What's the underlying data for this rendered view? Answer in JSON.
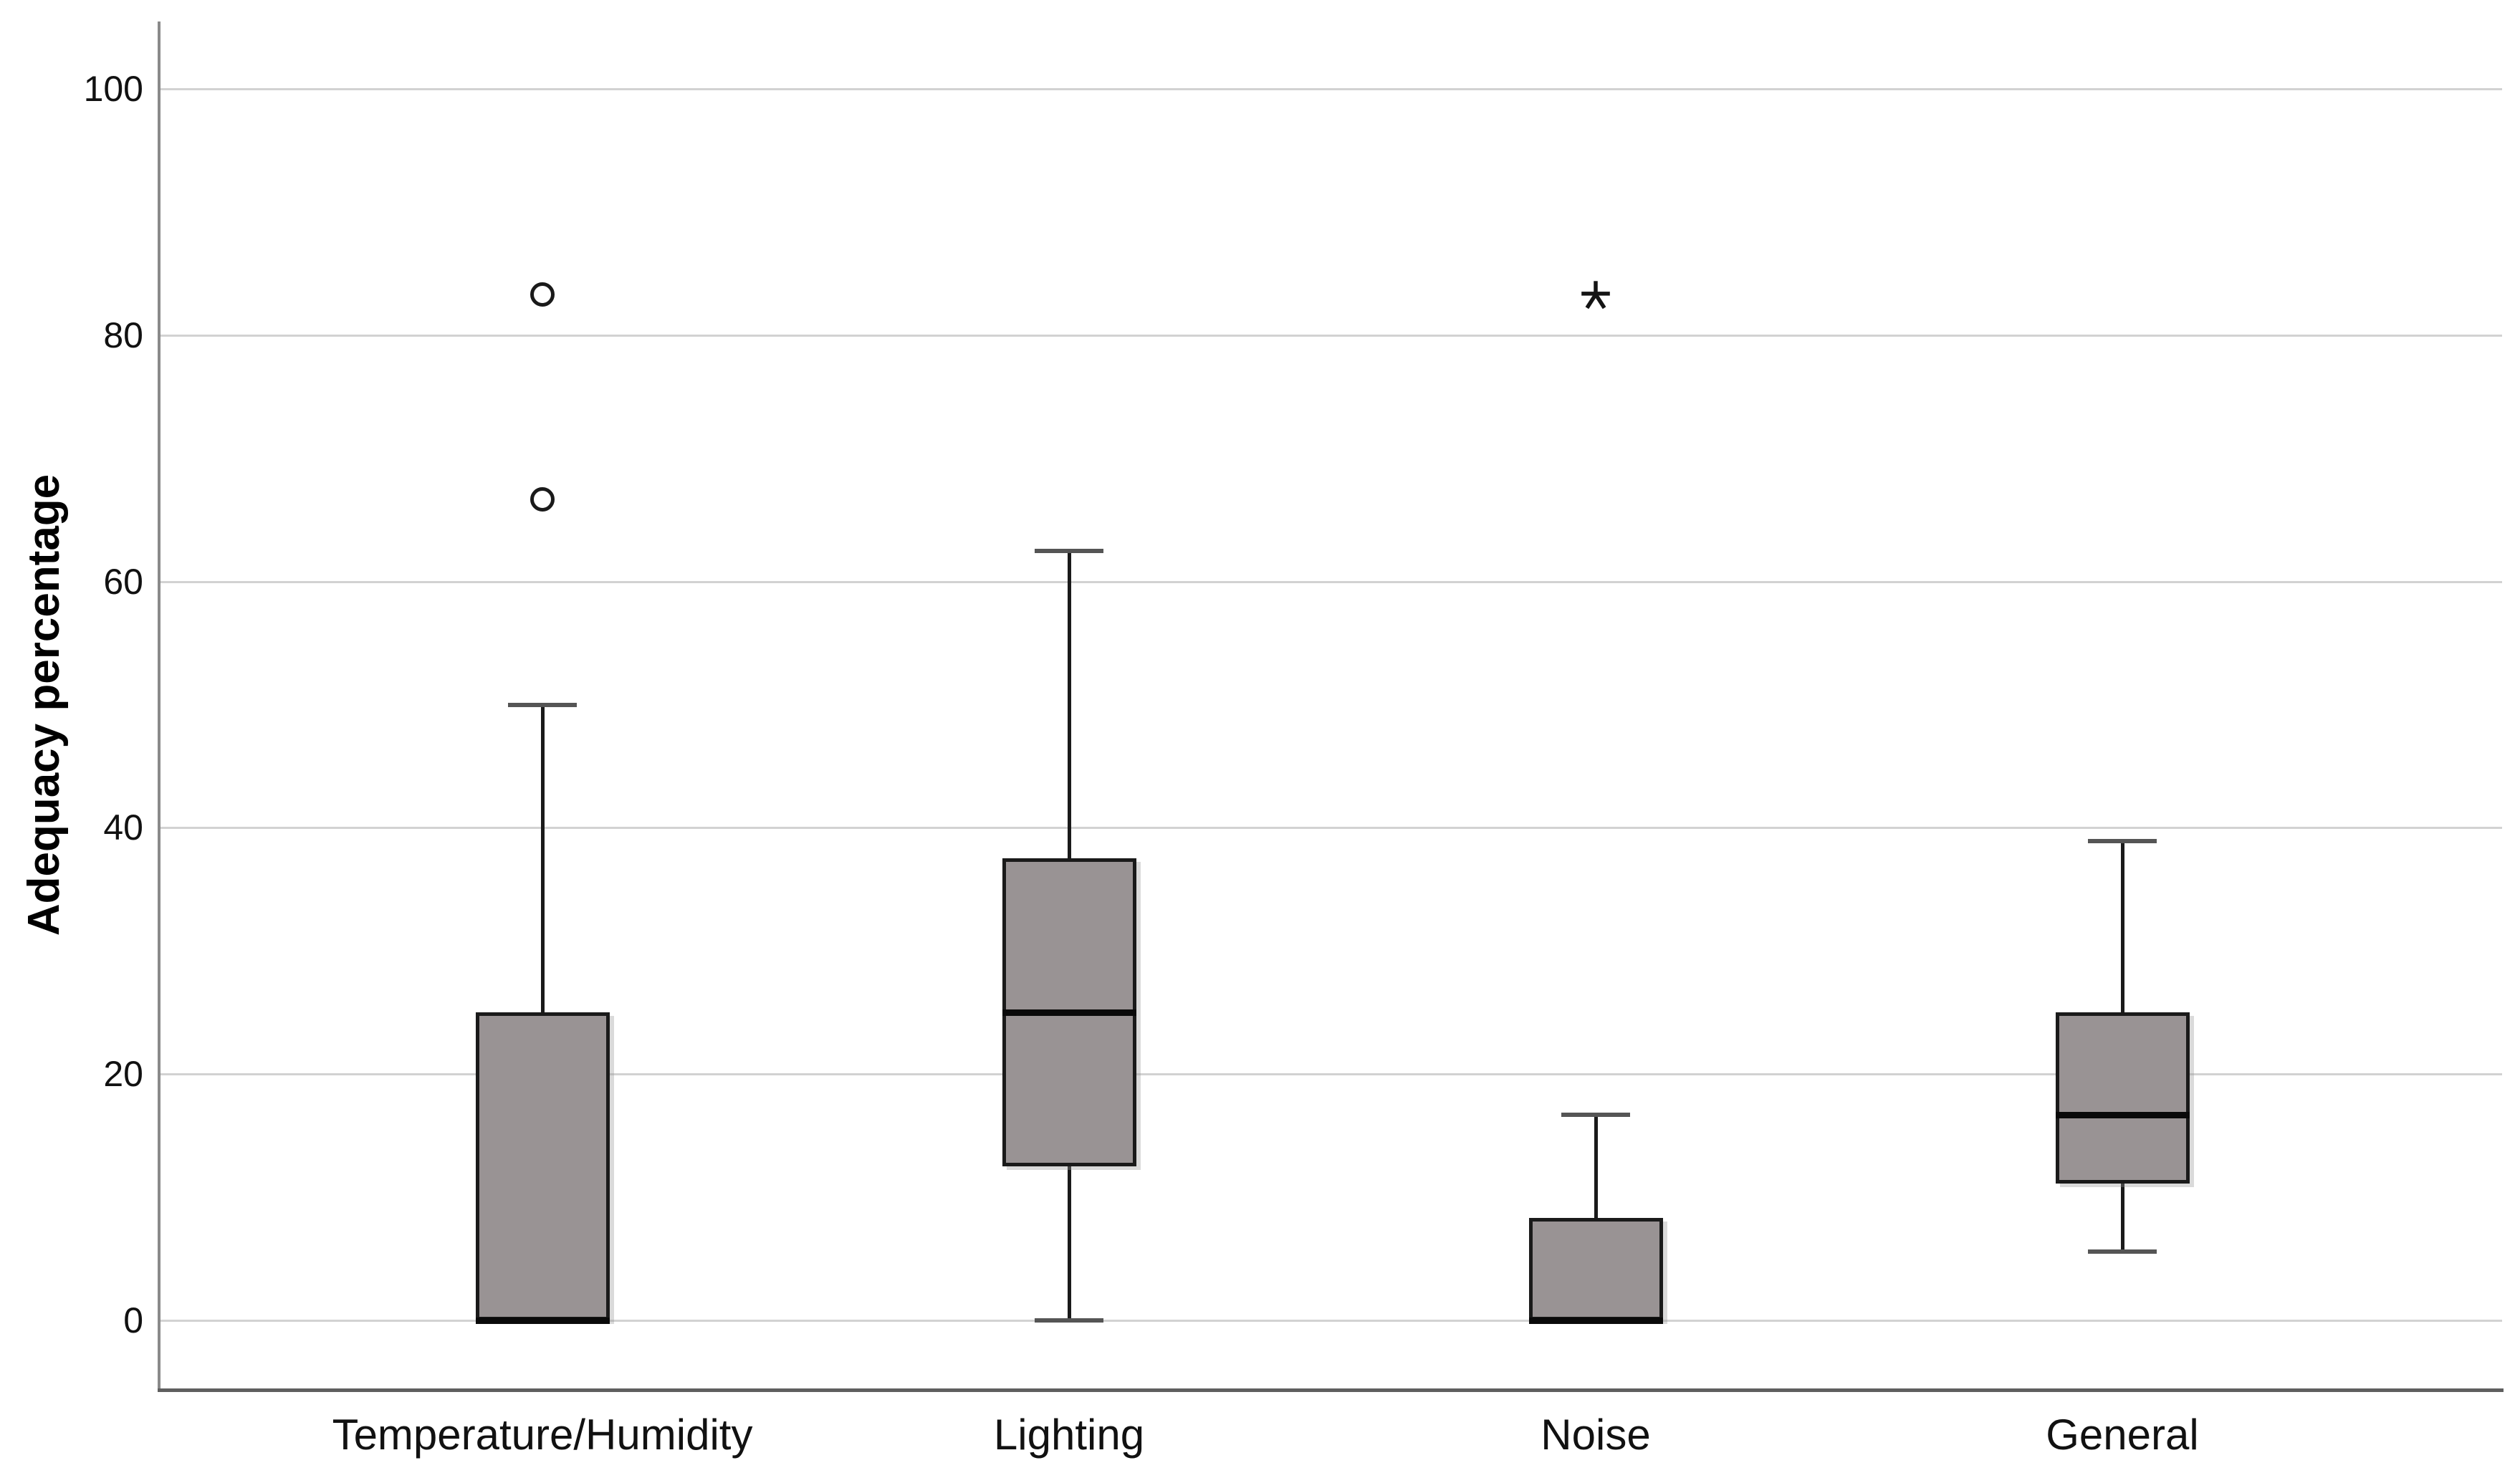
{
  "chart_data": {
    "type": "box",
    "title": "",
    "xlabel": "",
    "ylabel": "Adequacy percentage",
    "ylim": [
      0,
      100
    ],
    "yticks": [
      0,
      20,
      40,
      60,
      80,
      100
    ],
    "grid": "horizontal-light-gray",
    "legend": "none",
    "categories": [
      "Temperature/Humidity",
      "Lighting",
      "Noise",
      "General"
    ],
    "boxes": [
      {
        "category": "Temperature/Humidity",
        "whisker_low": 0,
        "q1": 0,
        "median": 0,
        "q3": 25,
        "whisker_high": 50,
        "outliers": [
          {
            "value": 66.67,
            "marker": "circle"
          },
          {
            "value": 83.33,
            "marker": "circle"
          }
        ]
      },
      {
        "category": "Lighting",
        "whisker_low": 0,
        "q1": 12.5,
        "median": 25,
        "q3": 37.5,
        "whisker_high": 62.5,
        "outliers": []
      },
      {
        "category": "Noise",
        "whisker_low": 0,
        "q1": 0,
        "median": 0,
        "q3": 8.33,
        "whisker_high": 16.67,
        "outliers": [
          {
            "value": 83.33,
            "marker": "asterisk"
          }
        ]
      },
      {
        "category": "General",
        "whisker_low": 5.56,
        "q1": 11.11,
        "median": 16.67,
        "q3": 25,
        "whisker_high": 38.89,
        "outliers": []
      }
    ],
    "colors": {
      "box_fill": "#999394",
      "box_border": "#1a1a1a",
      "median": "#0a0a0a",
      "whisker_cap": "#555555",
      "gridline": "#d2d2d2",
      "y_axis": "#8a8a8a",
      "x_axis": "#5f5f5f",
      "text": "#111111",
      "background": "#ffffff"
    }
  }
}
